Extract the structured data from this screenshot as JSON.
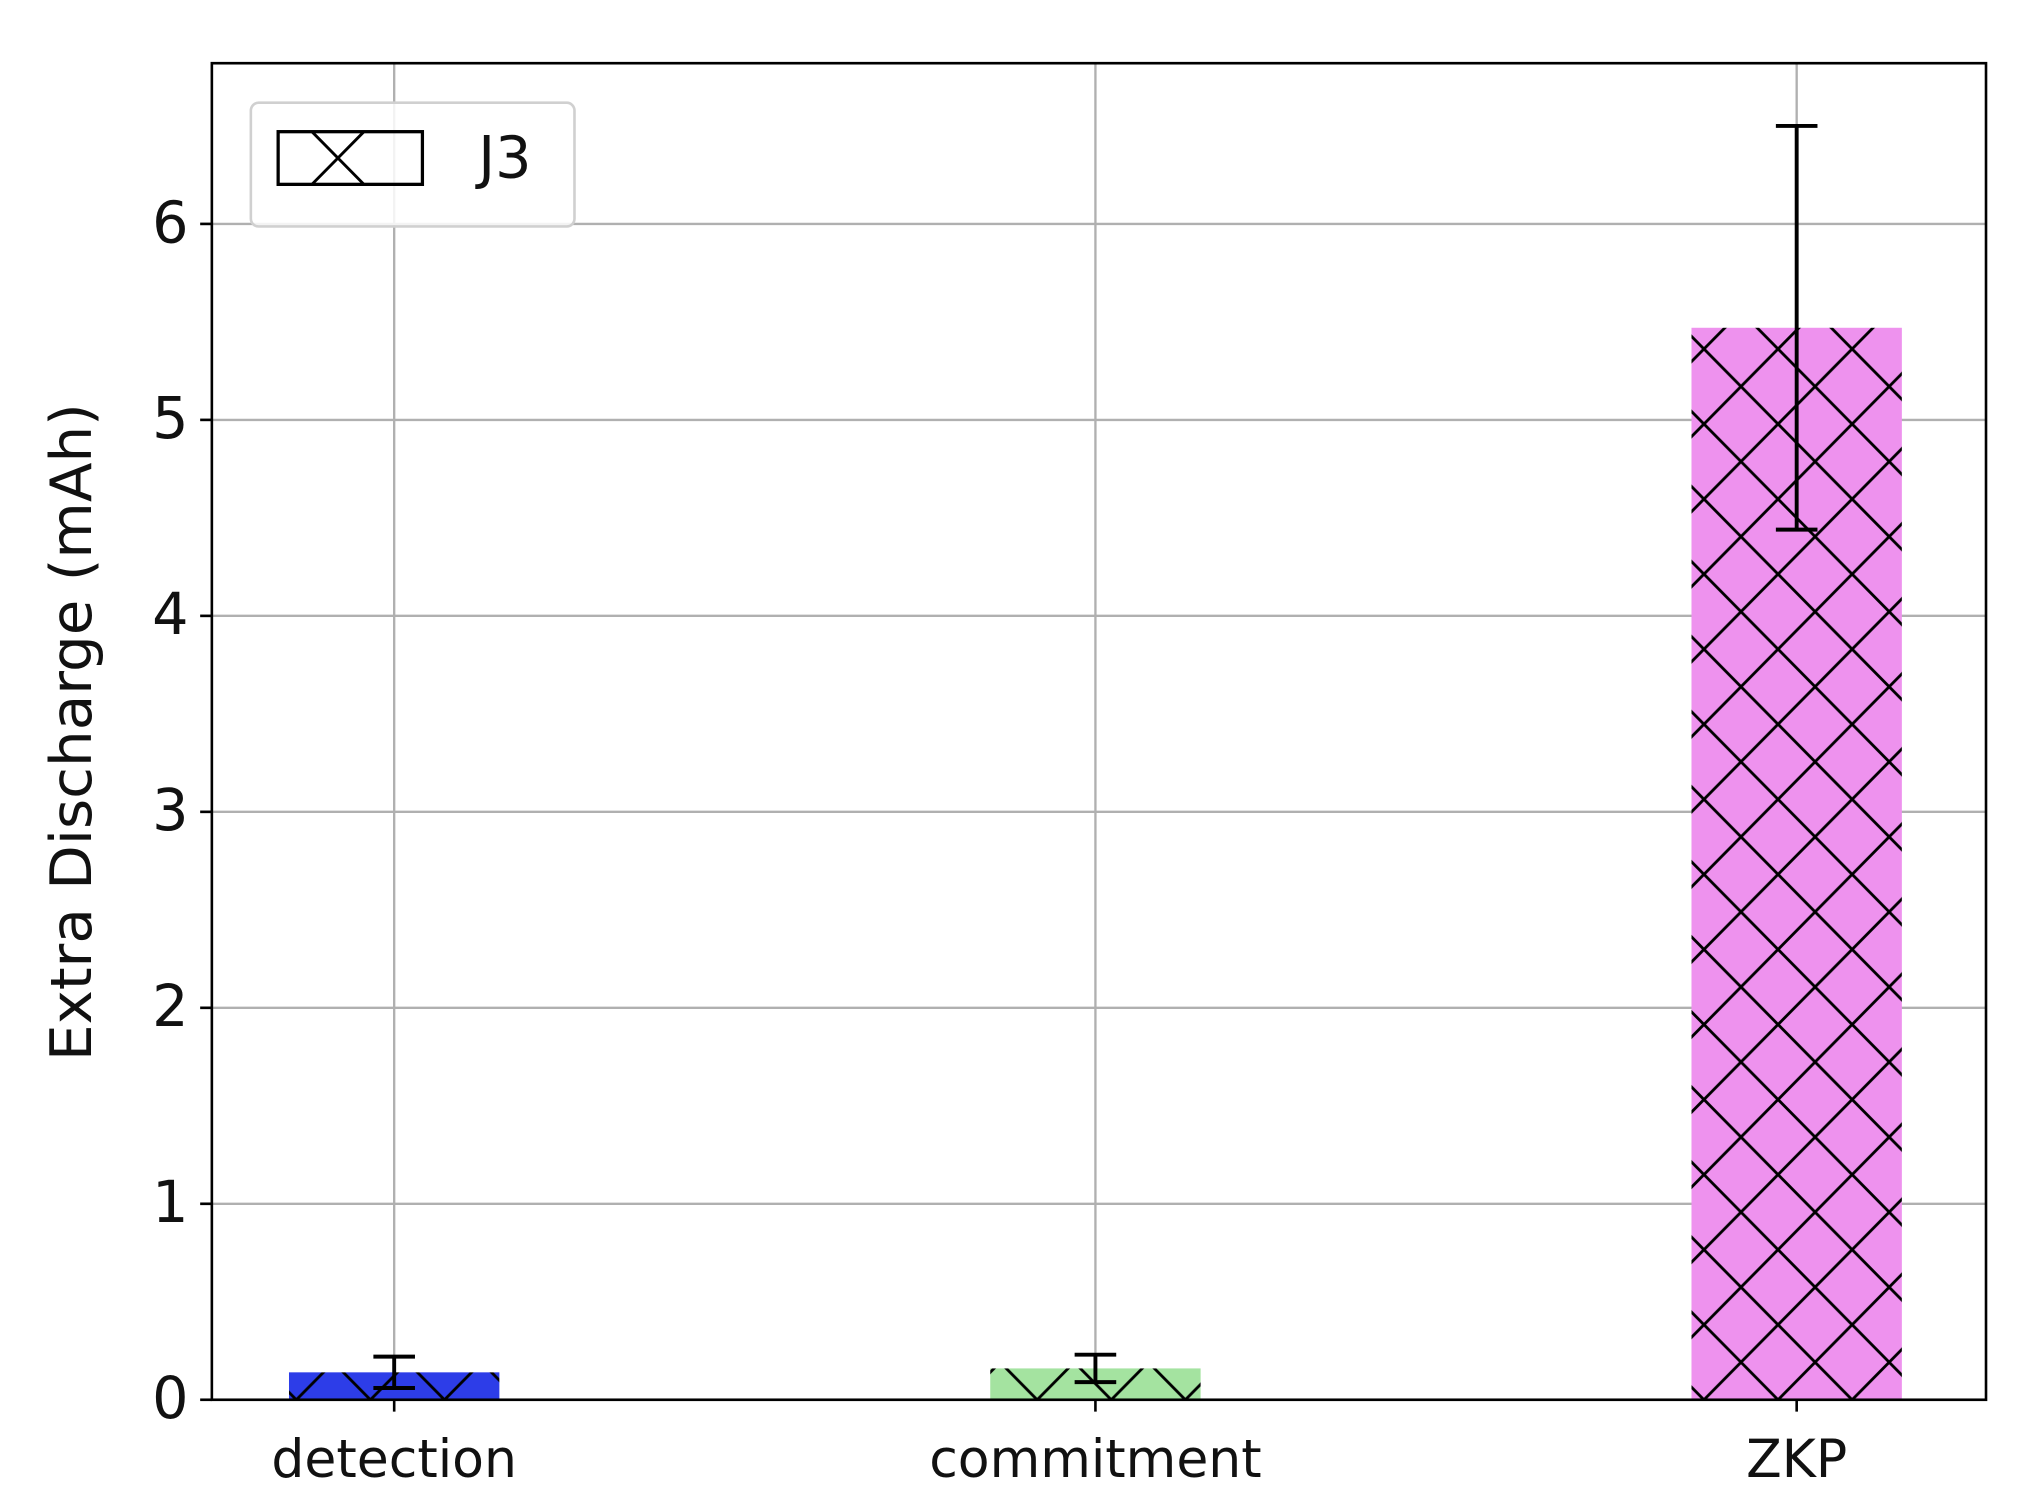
{
  "chart_data": {
    "type": "bar",
    "y_label": "Extra Discharge (mAh)",
    "categories": [
      "detection",
      "commitment",
      "ZKP"
    ],
    "series": [
      {
        "name": "J3",
        "values": [
          0.14,
          0.16,
          5.47
        ],
        "errors": [
          0.08,
          0.07,
          1.03
        ],
        "colors": [
          "#2d3de8",
          "#a4e3a0",
          "#ee92ee"
        ]
      }
    ],
    "hatch": "x",
    "xlim": [
      -0.26,
      2.27
    ],
    "ylim": [
      0,
      6.82
    ],
    "yticks": [
      0,
      1,
      2,
      3,
      4,
      5,
      6
    ],
    "grid": true,
    "legend_position": "upper left"
  }
}
